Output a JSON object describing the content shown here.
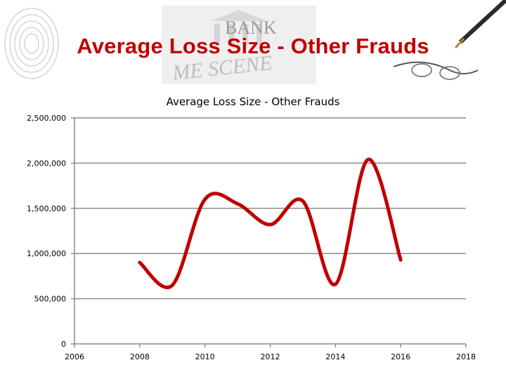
{
  "slide": {
    "title": "Average Loss Size - Other Frauds",
    "background_logo": "BANK CRIME SCENE",
    "decorative_images": [
      "fingerprint-icon",
      "bank-logo",
      "pen-and-glasses-icon"
    ]
  },
  "chart_data": {
    "type": "line",
    "title": "Average Loss Size - Other Frauds",
    "xlabel": "",
    "ylabel": "",
    "xlim": [
      2006,
      2018
    ],
    "ylim": [
      0,
      2500000
    ],
    "x_ticks": [
      2006,
      2008,
      2010,
      2012,
      2014,
      2016,
      2018
    ],
    "y_ticks": [
      0,
      500000,
      1000000,
      1500000,
      2000000,
      2500000
    ],
    "x_tick_labels": [
      "2006",
      "2008",
      "2010",
      "2012",
      "2014",
      "2016",
      "2018"
    ],
    "y_tick_labels": [
      "0",
      "500,000",
      "1,000,000",
      "1,500,000",
      "2,000,000",
      "2,500,000"
    ],
    "grid": true,
    "legend": "none",
    "smooth": true,
    "line_color": "#c00000",
    "series": [
      {
        "x": [
          2008,
          2009,
          2010,
          2011,
          2012,
          2013,
          2014,
          2015,
          2016
        ],
        "values": [
          900000,
          650000,
          1600000,
          1550000,
          1320000,
          1580000,
          660000,
          2040000,
          930000
        ]
      }
    ]
  }
}
